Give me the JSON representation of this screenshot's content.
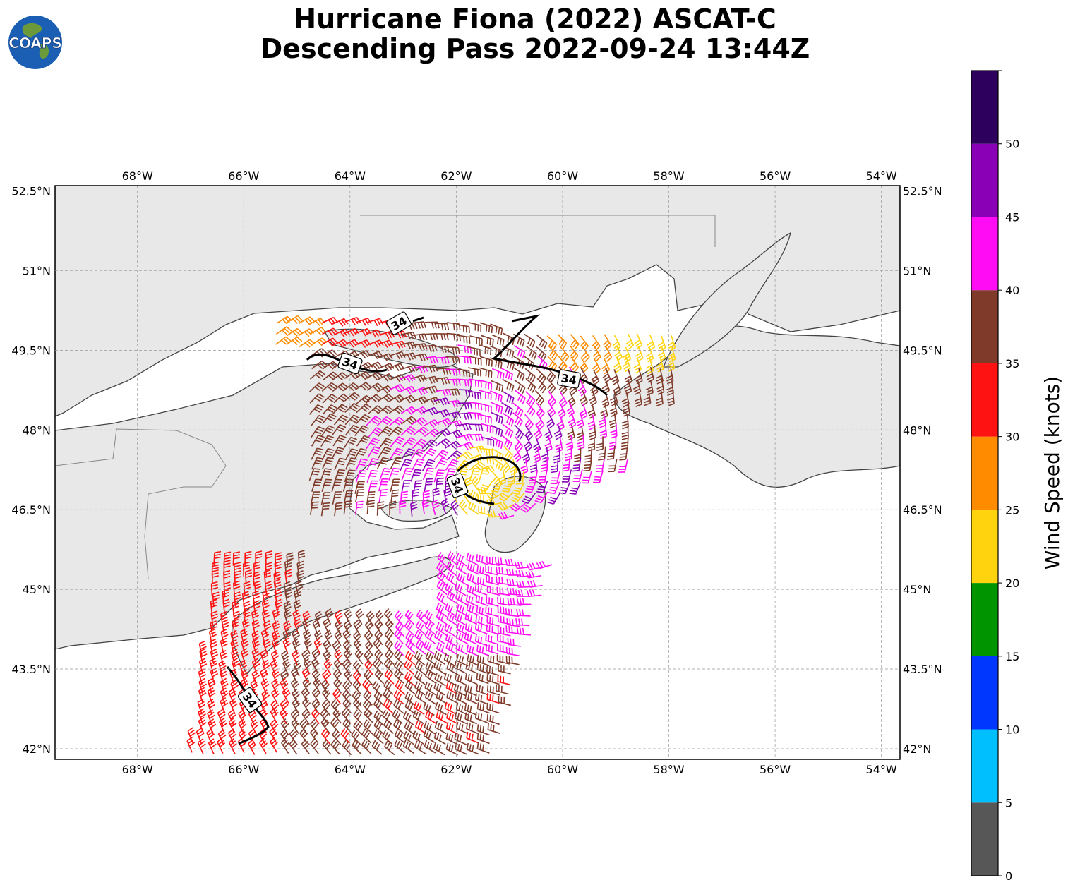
{
  "header": {
    "title_line1": "Hurricane Fiona (2022) ASCAT-C",
    "title_line2": "Descending Pass 2022-09-24 13:44Z",
    "logo_text": "COAPS"
  },
  "map": {
    "lon_labels": [
      "68°W",
      "66°W",
      "64°W",
      "62°W",
      "60°W",
      "58°W",
      "56°W",
      "54°W"
    ],
    "lat_labels": [
      "52.5°N",
      "51°N",
      "49.5°N",
      "48°N",
      "46.5°N",
      "45°N",
      "43.5°N",
      "42°N"
    ],
    "lon_range": [
      -69.55,
      -53.65
    ],
    "lat_range": [
      41.8,
      52.6
    ],
    "contour_label": "34",
    "colors": {
      "land": "#ebebeb",
      "water": "#ffffff",
      "coast": "#444444"
    }
  },
  "colorbar": {
    "label": "Wind Speed (knots)",
    "tick_labels": [
      "0",
      "5",
      "10",
      "15",
      "20",
      "25",
      "30",
      "35",
      "40",
      "45",
      "50"
    ],
    "range": [
      0,
      55
    ],
    "bins": [
      {
        "from": 0,
        "to": 5,
        "color": "#575757"
      },
      {
        "from": 5,
        "to": 10,
        "color": "#00bfff"
      },
      {
        "from": 10,
        "to": 15,
        "color": "#0037ff"
      },
      {
        "from": 15,
        "to": 20,
        "color": "#009400"
      },
      {
        "from": 20,
        "to": 25,
        "color": "#ffd40f"
      },
      {
        "from": 25,
        "to": 30,
        "color": "#ff8b00"
      },
      {
        "from": 30,
        "to": 35,
        "color": "#ff1212"
      },
      {
        "from": 35,
        "to": 40,
        "color": "#7f3a29"
      },
      {
        "from": 40,
        "to": 45,
        "color": "#ff0cf4"
      },
      {
        "from": 45,
        "to": 50,
        "color": "#8a00b6"
      },
      {
        "from": 50,
        "to": 55,
        "color": "#2c005c"
      }
    ]
  }
}
